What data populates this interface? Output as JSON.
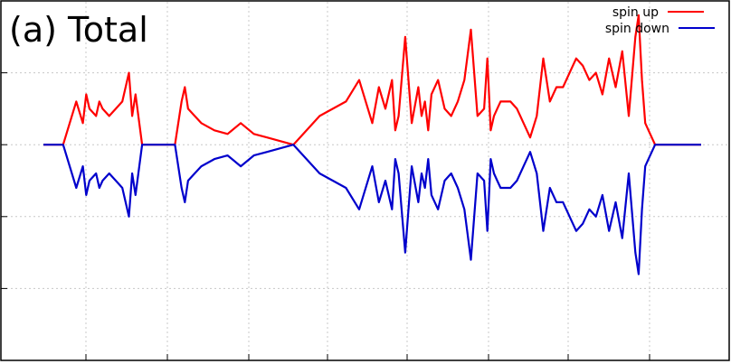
{
  "chart_data": {
    "type": "line",
    "title": "(a) Total",
    "xlabel": "",
    "ylabel": "",
    "xlim": [
      0,
      100
    ],
    "ylim": [
      -3,
      2
    ],
    "grid": true,
    "legend_position": "top-right",
    "series": [
      {
        "name": "spin up",
        "color": "#ff0000",
        "x": [
          0,
          3,
          5,
          6,
          6.5,
          7,
          8,
          8.5,
          9,
          10,
          11,
          12,
          13,
          13.5,
          14,
          15,
          15.5,
          16,
          17,
          18,
          20,
          21,
          21.5,
          22,
          23,
          24,
          26,
          28,
          30,
          32,
          34,
          36,
          38,
          42,
          46,
          48,
          50,
          51,
          52,
          53,
          53.5,
          54,
          55,
          56,
          57,
          57.5,
          58,
          58.5,
          59,
          60,
          61,
          62,
          63,
          64,
          65,
          66,
          67,
          67.5,
          68,
          68.5,
          69,
          69.5,
          70,
          71,
          72,
          73,
          74,
          75,
          76,
          77,
          78,
          79,
          80,
          81,
          82,
          83,
          84,
          85,
          86,
          87,
          88,
          89,
          90,
          90.5,
          91,
          91.5,
          92,
          93,
          94,
          95,
          96,
          97,
          98,
          99,
          100
        ],
        "values": [
          0,
          0,
          0.6,
          0.3,
          0.7,
          0.5,
          0.4,
          0.6,
          0.5,
          0.4,
          0.5,
          0.6,
          1.0,
          0.4,
          0.7,
          0,
          0,
          0,
          0,
          0,
          0,
          0.6,
          0.8,
          0.5,
          0.4,
          0.3,
          0.2,
          0.15,
          0.3,
          0.15,
          0.1,
          0.05,
          0,
          0.4,
          0.6,
          0.9,
          0.3,
          0.8,
          0.5,
          0.9,
          0.2,
          0.4,
          1.5,
          0.3,
          0.8,
          0.4,
          0.6,
          0.2,
          0.7,
          0.9,
          0.5,
          0.4,
          0.6,
          0.9,
          1.6,
          0.4,
          0.5,
          1.2,
          0.2,
          0.4,
          0.5,
          0.6,
          0.6,
          0.6,
          0.5,
          0.3,
          0.1,
          0.4,
          1.2,
          0.6,
          0.8,
          0.8,
          1.0,
          1.2,
          1.1,
          0.9,
          1.0,
          0.7,
          1.2,
          0.8,
          1.3,
          0.4,
          1.5,
          1.8,
          0.9,
          0.3,
          0.2,
          0,
          0,
          0,
          0,
          0,
          0,
          0,
          0
        ]
      },
      {
        "name": "spin down",
        "color": "#0000cc",
        "x": [
          0,
          3,
          5,
          6,
          6.5,
          7,
          8,
          8.5,
          9,
          10,
          11,
          12,
          13,
          13.5,
          14,
          15,
          15.5,
          16,
          17,
          18,
          20,
          21,
          21.5,
          22,
          23,
          24,
          26,
          28,
          30,
          32,
          34,
          36,
          38,
          42,
          46,
          48,
          50,
          51,
          52,
          53,
          53.5,
          54,
          55,
          56,
          57,
          57.5,
          58,
          58.5,
          59,
          60,
          61,
          62,
          63,
          64,
          65,
          66,
          67,
          67.5,
          68,
          68.5,
          69,
          69.5,
          70,
          71,
          72,
          73,
          74,
          75,
          76,
          77,
          78,
          79,
          80,
          81,
          82,
          83,
          84,
          85,
          86,
          87,
          88,
          89,
          90,
          90.5,
          91,
          91.5,
          92,
          93,
          94,
          95,
          96,
          97,
          98,
          99,
          100
        ],
        "values": [
          0,
          0,
          -0.6,
          -0.3,
          -0.7,
          -0.5,
          -0.4,
          -0.6,
          -0.5,
          -0.4,
          -0.5,
          -0.6,
          -1.0,
          -0.4,
          -0.7,
          0,
          0,
          0,
          0,
          0,
          0,
          -0.6,
          -0.8,
          -0.5,
          -0.4,
          -0.3,
          -0.2,
          -0.15,
          -0.3,
          -0.15,
          -0.1,
          -0.05,
          0,
          -0.4,
          -0.6,
          -0.9,
          -0.3,
          -0.8,
          -0.5,
          -0.9,
          -0.2,
          -0.4,
          -1.5,
          -0.3,
          -0.8,
          -0.4,
          -0.6,
          -0.2,
          -0.7,
          -0.9,
          -0.5,
          -0.4,
          -0.6,
          -0.9,
          -1.6,
          -0.4,
          -0.5,
          -1.2,
          -0.2,
          -0.4,
          -0.5,
          -0.6,
          -0.6,
          -0.6,
          -0.5,
          -0.3,
          -0.1,
          -0.4,
          -1.2,
          -0.6,
          -0.8,
          -0.8,
          -1.0,
          -1.2,
          -1.1,
          -0.9,
          -1.0,
          -0.7,
          -1.2,
          -0.8,
          -1.3,
          -0.4,
          -1.5,
          -1.8,
          -0.9,
          -0.3,
          -0.2,
          0,
          0,
          0,
          0,
          0,
          0,
          0,
          0
        ]
      }
    ]
  }
}
